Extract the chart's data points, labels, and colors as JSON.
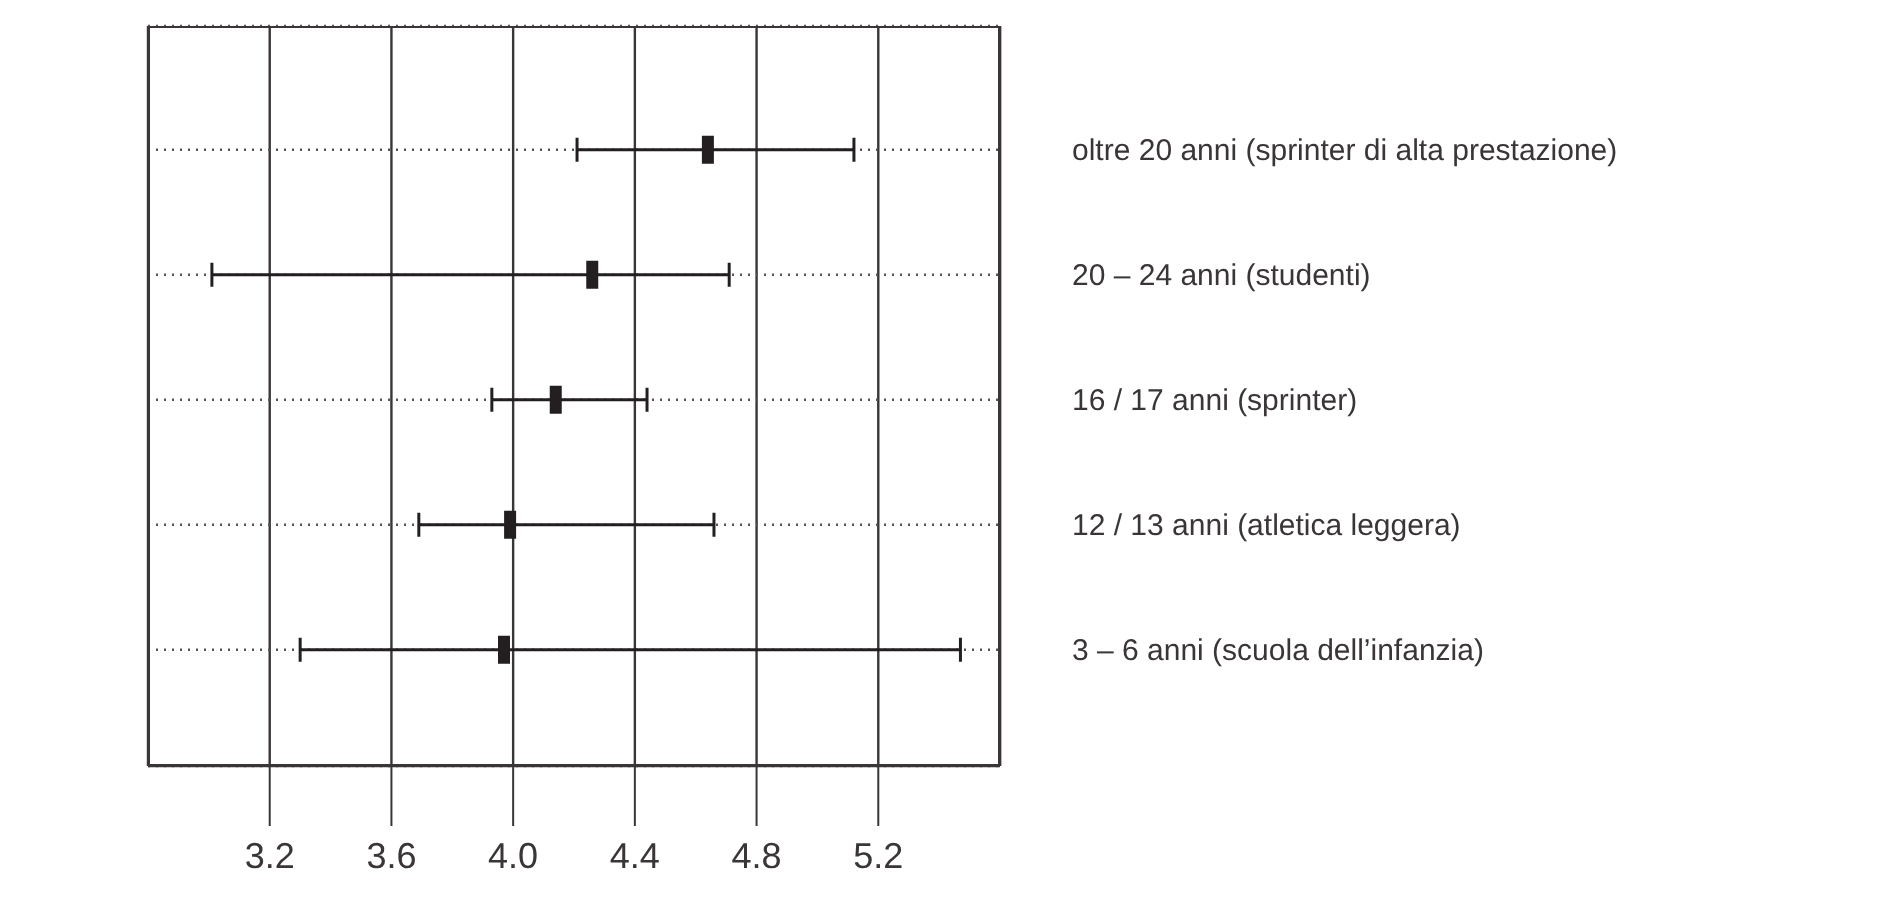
{
  "chart_data": {
    "type": "scatter",
    "orientation": "horizontal",
    "categories": [
      "oltre 20 anni (sprinter di alta prestazione)",
      "20 – 24 anni (studenti)",
      "16 / 17 anni (sprinter)",
      "12 / 13 anni (atletica leggera)",
      "3 – 6 anni (scuola dell’infanzia)"
    ],
    "values": [
      4.64,
      4.26,
      4.14,
      3.99,
      3.97
    ],
    "errors": [
      [
        4.21,
        5.12
      ],
      [
        3.01,
        4.71
      ],
      [
        3.93,
        4.44
      ],
      [
        3.69,
        4.66
      ],
      [
        3.3,
        5.47
      ]
    ],
    "color": "#231f20",
    "xlim": [
      2.8,
      5.6
    ],
    "xticks": [
      3.2,
      3.6,
      {
        "value": 4.0,
        "label": "4.0"
      },
      4.4,
      4.8,
      5.2
    ],
    "grid": true
  }
}
